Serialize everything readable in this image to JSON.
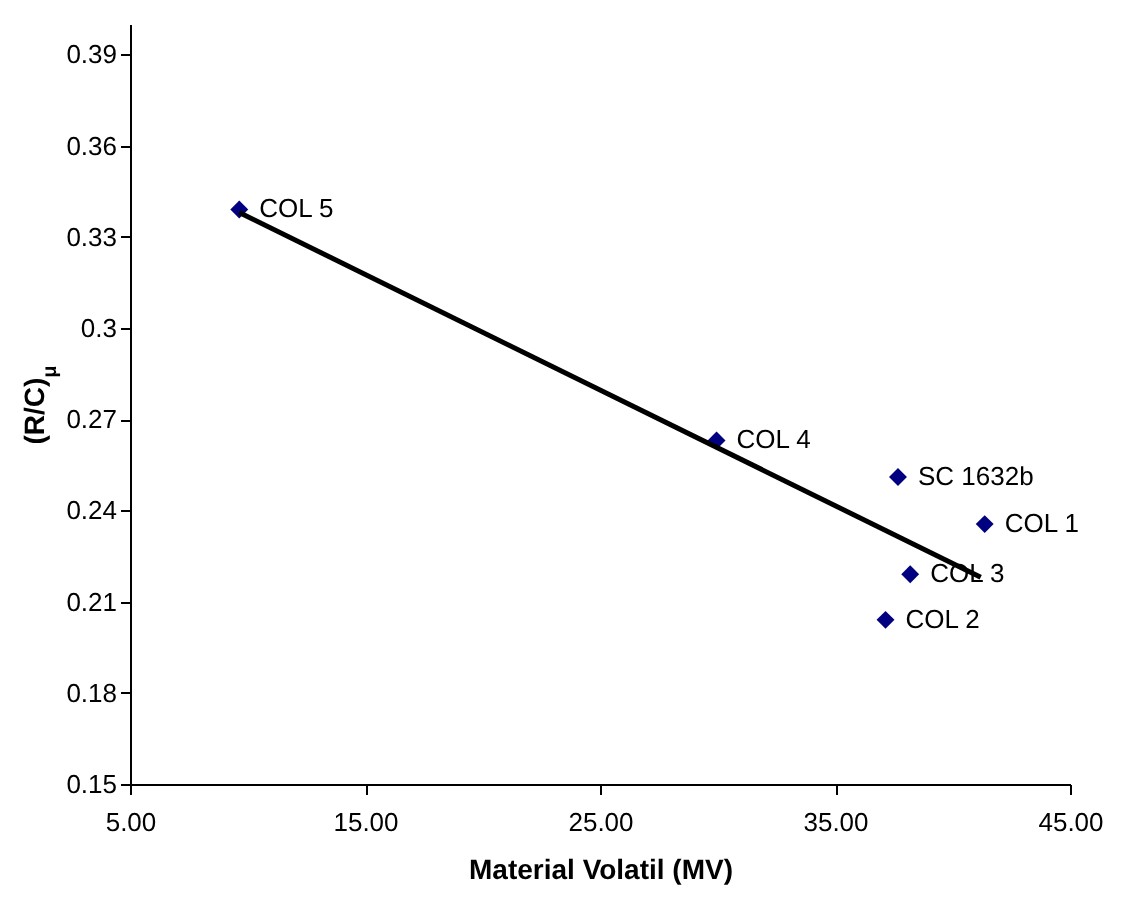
{
  "chart_data": {
    "type": "scatter",
    "xlabel": "Material Volatil (MV)",
    "ylabel": "(R/C)$_{μ}$",
    "xlim": [
      5,
      45
    ],
    "xticks": [
      {
        "value": 5,
        "label": "5.00"
      },
      {
        "value": 15,
        "label": "15.00"
      },
      {
        "value": 25,
        "label": "25.00"
      },
      {
        "value": 35,
        "label": "35.00"
      },
      {
        "value": 45,
        "label": "45.00"
      }
    ],
    "ylim": [
      0.15,
      0.4
    ],
    "yticks": [
      0.15,
      0.18,
      0.21,
      0.24,
      0.27,
      0.3,
      0.33,
      0.36,
      0.39
    ],
    "grid": false,
    "marker": "diamond",
    "series": [
      {
        "type": "scatter",
        "color": "#000080",
        "x": [
          41.37,
          37.15,
          38.2,
          29.96,
          9.65,
          37.68
        ],
        "values": [
          0.2355,
          0.204,
          0.219,
          0.263,
          0.339,
          0.251
        ],
        "value_labels": [
          "COL 1",
          "COL 2",
          "COL 3",
          "COL 4",
          "COL 5",
          "SC 1632b"
        ]
      },
      {
        "type": "line",
        "color": "#000000",
        "marker": "none",
        "line_style": "solid",
        "x": [
          9.65,
          41.2
        ],
        "values": [
          0.338,
          0.218
        ]
      }
    ]
  }
}
